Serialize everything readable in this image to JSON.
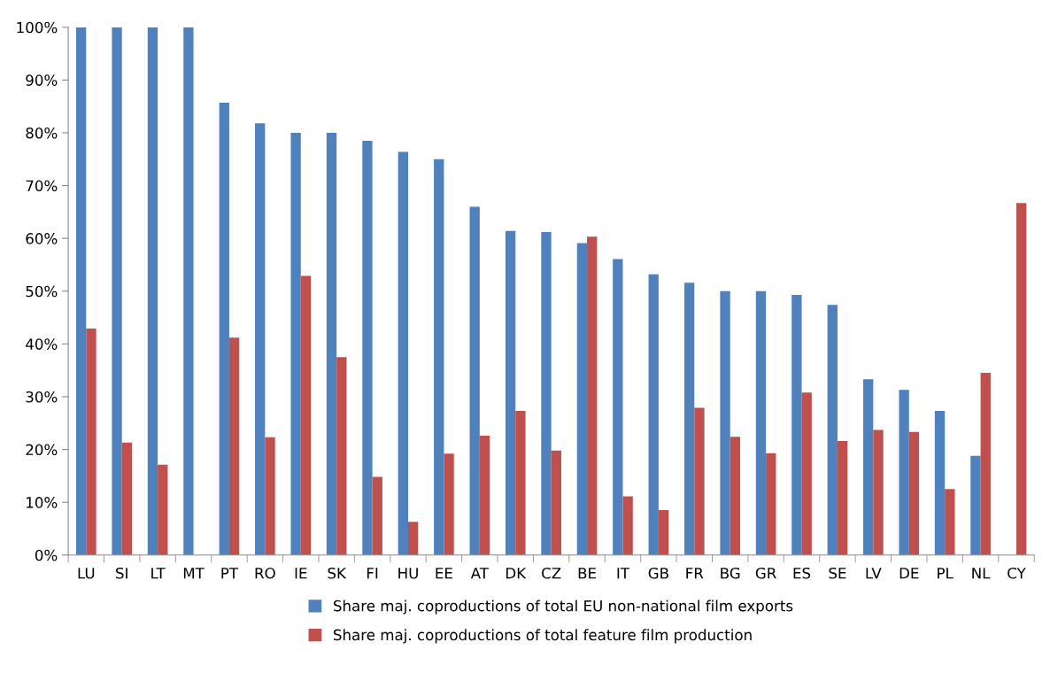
{
  "chart_data": {
    "type": "bar",
    "categories": [
      "LU",
      "SI",
      "LT",
      "MT",
      "PT",
      "RO",
      "IE",
      "SK",
      "FI",
      "HU",
      "EE",
      "AT",
      "DK",
      "CZ",
      "BE",
      "IT",
      "GB",
      "FR",
      "BG",
      "GR",
      "ES",
      "SE",
      "LV",
      "DE",
      "PL",
      "NL",
      "CY"
    ],
    "series": [
      {
        "name": "Share maj. coproductions of total EU non-national film exports",
        "color": "#4f81bd",
        "values": [
          100,
          100,
          100,
          100,
          85.7,
          81.8,
          80,
          80,
          78.5,
          76.4,
          75,
          66,
          61.4,
          61.2,
          59.1,
          56.1,
          53.2,
          51.6,
          50,
          50,
          49.3,
          47.4,
          33.3,
          31.3,
          27.3,
          18.8,
          null
        ]
      },
      {
        "name": "Share maj. coproductions of total feature film production",
        "color": "#c0504d",
        "values": [
          42.9,
          21.3,
          17.1,
          null,
          41.2,
          22.3,
          52.9,
          37.5,
          14.8,
          6.3,
          19.2,
          22.6,
          27.3,
          19.8,
          60.3,
          11.1,
          8.5,
          27.9,
          22.4,
          19.3,
          30.8,
          21.6,
          23.7,
          23.3,
          12.5,
          34.5,
          66.7
        ]
      }
    ],
    "ylim": [
      0,
      100
    ],
    "yticks": [
      {
        "value": 0,
        "label": "0%"
      },
      {
        "value": 10,
        "label": "10%"
      },
      {
        "value": 20,
        "label": "20%"
      },
      {
        "value": 30,
        "label": "30%"
      },
      {
        "value": 40,
        "label": "40%"
      },
      {
        "value": 50,
        "label": "50%"
      },
      {
        "value": 60,
        "label": "60%"
      },
      {
        "value": 70,
        "label": "70%"
      },
      {
        "value": 80,
        "label": "80%"
      },
      {
        "value": 90,
        "label": "90%"
      },
      {
        "value": 100,
        "label": "100%"
      }
    ],
    "grid": false,
    "legend": "bottom"
  }
}
